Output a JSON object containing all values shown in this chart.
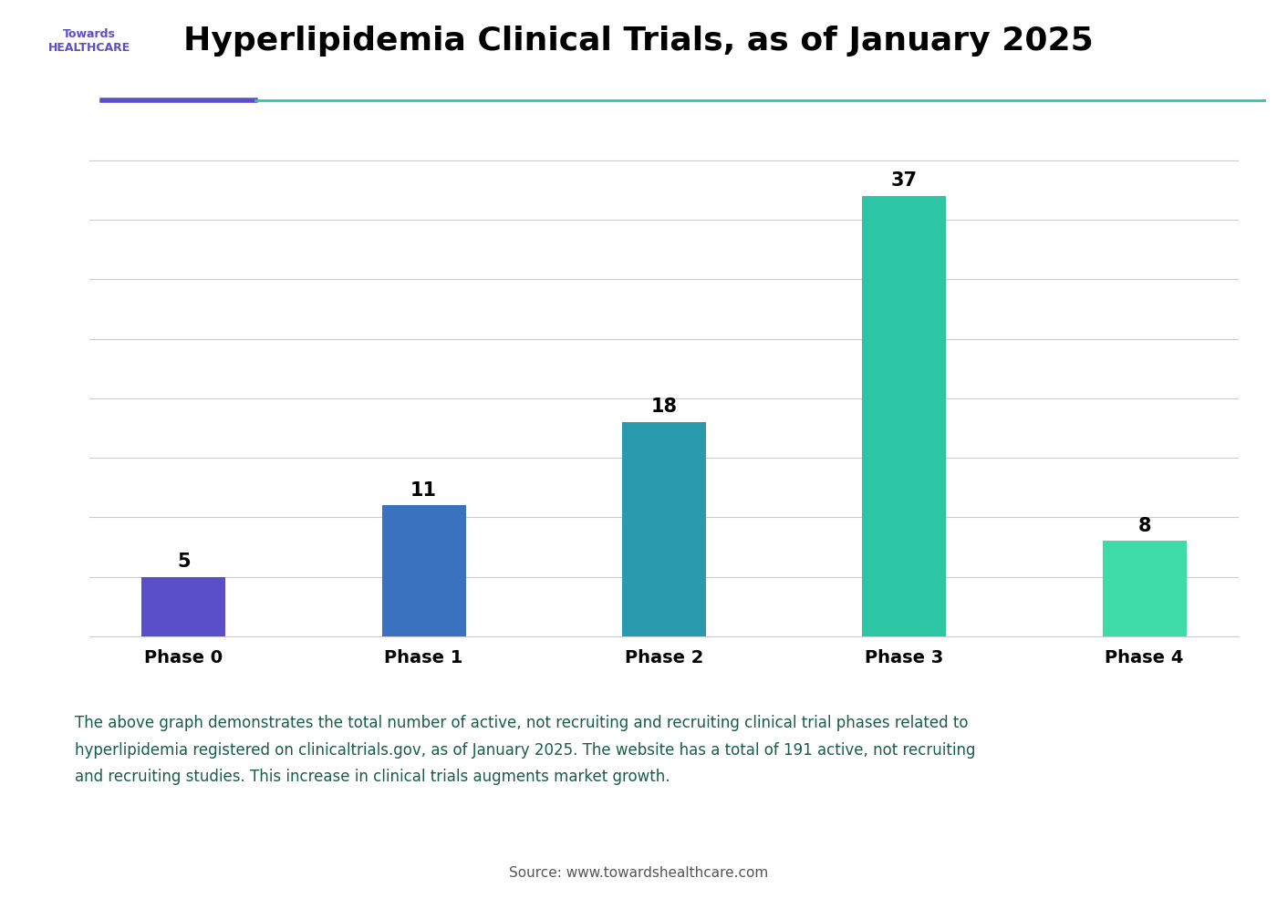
{
  "title": "Hyperlipidemia Clinical Trials, as of January 2025",
  "categories": [
    "Phase 0",
    "Phase 1",
    "Phase 2",
    "Phase 3",
    "Phase 4"
  ],
  "values": [
    5,
    11,
    18,
    37,
    8
  ],
  "bar_colors": [
    "#5B4FC9",
    "#3B72C0",
    "#2A9BAF",
    "#2DC6A4",
    "#3EDBA8"
  ],
  "background_color": "#ffffff",
  "ylabel": "",
  "ylim": [
    0,
    42
  ],
  "grid_color": "#cccccc",
  "annotation_text": "The above graph demonstrates the total number of active, not recruiting and recruiting clinical trial phases related to\nhyperlipidemia registered on clinicaltrials.gov, as of January 2025. The website has a total of 191 active, not recruiting\nand recruiting studies. This increase in clinical trials augments market growth.",
  "annotation_bg": "#e8faf5",
  "annotation_border": "#a0e0cc",
  "source_text": "Source: www.towardshealthcare.com",
  "header_line1_color": "#5B4FC9",
  "header_line2_color": "#2DC6A4",
  "value_fontsize": 15,
  "xlabel_fontsize": 14
}
